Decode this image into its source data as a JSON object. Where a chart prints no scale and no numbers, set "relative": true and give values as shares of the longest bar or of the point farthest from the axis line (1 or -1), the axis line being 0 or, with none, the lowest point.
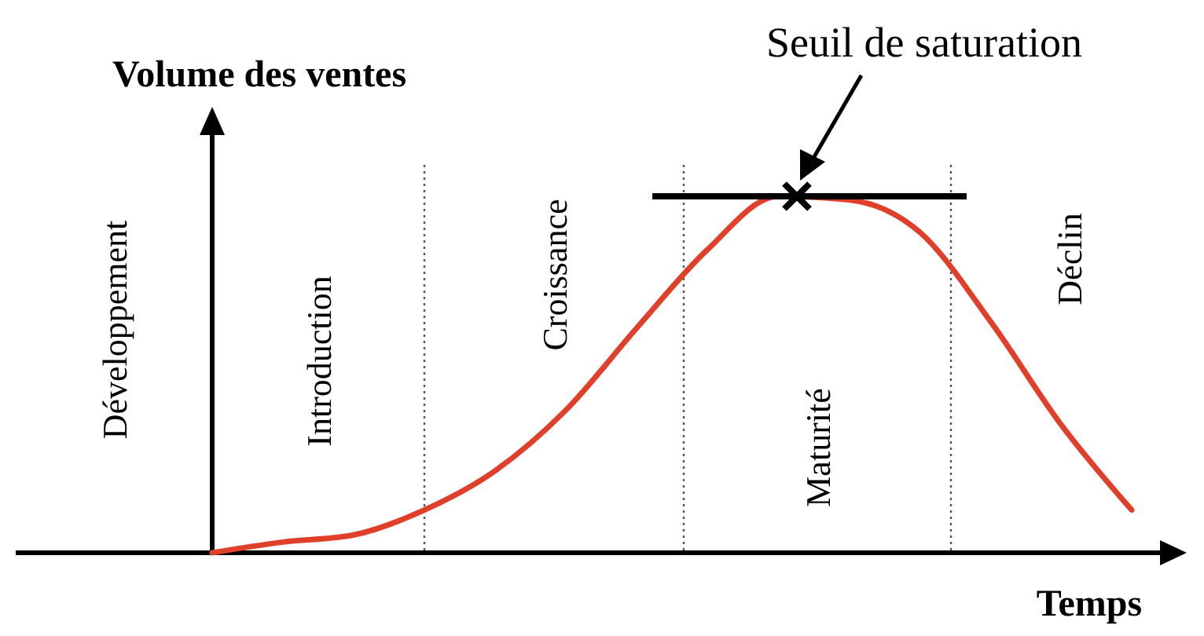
{
  "chart_data": {
    "type": "line",
    "relative": true,
    "ylabel": "Volume des ventes",
    "xlabel": "Temps",
    "categories": [
      null,
      null,
      null,
      null,
      null,
      null,
      null,
      null,
      null,
      null,
      null,
      null,
      null,
      null
    ],
    "series": [
      {
        "color": "#e0402a",
        "values": [
          0,
          0.03,
          0.05,
          0.12,
          0.23,
          0.4,
          0.63,
          0.85,
          1,
          0.99,
          0.9,
          0.65,
          0.36,
          0.12
        ]
      }
    ],
    "ref_lines": [
      {
        "axis": "y",
        "value": 1,
        "label": "Seuil de saturation",
        "color": "#000000"
      }
    ],
    "annotations": [
      "Développement",
      "Introduction",
      "Croissance",
      "Maturité",
      "Déclin"
    ],
    "marker": "none",
    "line_style": "solid"
  }
}
